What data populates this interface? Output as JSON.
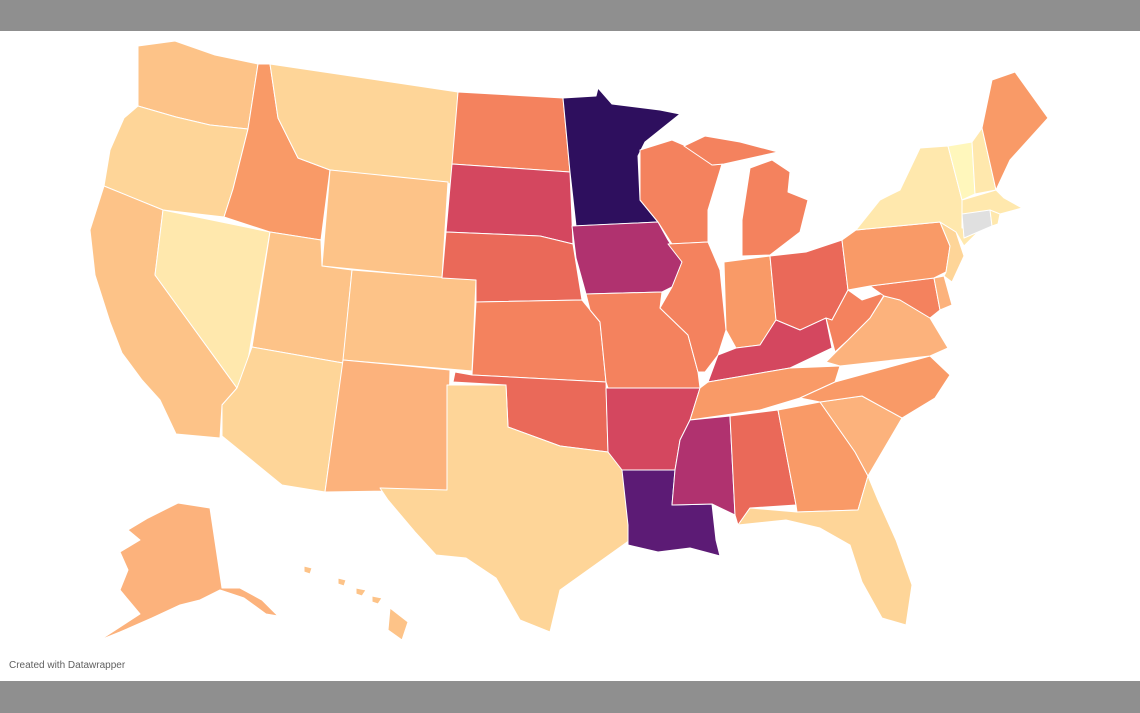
{
  "credit": "Created with Datawrapper",
  "scale": {
    "1": "#fff7bc",
    "2": "#ffe8ad",
    "3": "#fed598",
    "4": "#fdc388",
    "5": "#fcb27c",
    "6": "#f99a67",
    "7": "#f4825e",
    "8": "#ea6959",
    "9": "#d4475f",
    "10": "#b0326f",
    "11": "#5c1b75",
    "12": "#2e0f5e",
    "nodata": "#e0e0e0"
  },
  "states": [
    {
      "id": "WA",
      "level": 4
    },
    {
      "id": "OR",
      "level": 3
    },
    {
      "id": "CA",
      "level": 4
    },
    {
      "id": "NV",
      "level": 2
    },
    {
      "id": "ID",
      "level": 6
    },
    {
      "id": "MT",
      "level": 3
    },
    {
      "id": "WY",
      "level": 4
    },
    {
      "id": "UT",
      "level": 4
    },
    {
      "id": "AZ",
      "level": 3
    },
    {
      "id": "CO",
      "level": 4
    },
    {
      "id": "NM",
      "level": 5
    },
    {
      "id": "ND",
      "level": 7
    },
    {
      "id": "SD",
      "level": 9
    },
    {
      "id": "NE",
      "level": 8
    },
    {
      "id": "KS",
      "level": 7
    },
    {
      "id": "OK",
      "level": 8
    },
    {
      "id": "TX",
      "level": 3
    },
    {
      "id": "MN",
      "level": 12
    },
    {
      "id": "IA",
      "level": 10
    },
    {
      "id": "MO",
      "level": 7
    },
    {
      "id": "AR",
      "level": 9
    },
    {
      "id": "LA",
      "level": 11
    },
    {
      "id": "WI",
      "level": 7
    },
    {
      "id": "IL",
      "level": 7
    },
    {
      "id": "MI",
      "level": 7
    },
    {
      "id": "IN",
      "level": 6
    },
    {
      "id": "OH",
      "level": 8
    },
    {
      "id": "KY",
      "level": 9
    },
    {
      "id": "TN",
      "level": 6
    },
    {
      "id": "MS",
      "level": 10
    },
    {
      "id": "AL",
      "level": 8
    },
    {
      "id": "GA",
      "level": 6
    },
    {
      "id": "FL",
      "level": 3
    },
    {
      "id": "SC",
      "level": 5
    },
    {
      "id": "NC",
      "level": 6
    },
    {
      "id": "VA",
      "level": 5
    },
    {
      "id": "WV",
      "level": 7
    },
    {
      "id": "PA",
      "level": 6
    },
    {
      "id": "NY",
      "level": 2
    },
    {
      "id": "VT",
      "level": 1
    },
    {
      "id": "NH",
      "level": 2
    },
    {
      "id": "ME",
      "level": 6
    },
    {
      "id": "MA",
      "level": 2
    },
    {
      "id": "CT",
      "level": "nodata"
    },
    {
      "id": "RI",
      "level": 2
    },
    {
      "id": "NJ",
      "level": 3
    },
    {
      "id": "DE",
      "level": 5
    },
    {
      "id": "MD",
      "level": 7
    },
    {
      "id": "AK",
      "level": 5
    },
    {
      "id": "HI",
      "level": 4
    }
  ]
}
